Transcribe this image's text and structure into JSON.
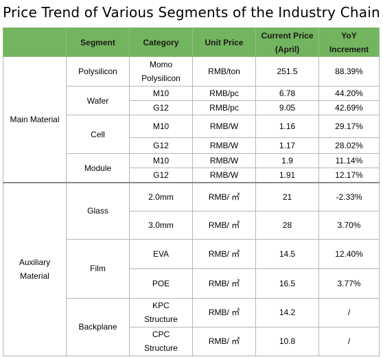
{
  "title": "Price Trend of Various Segments of the Industry Chain",
  "headers": {
    "segment": "Segment",
    "category": "Category",
    "unit_price": "Unit Price",
    "current_price_line1": "Current Price",
    "current_price_line2": "(April)",
    "yoy_line1": "YoY",
    "yoy_line2": "Increment"
  },
  "groups": {
    "main": "Main Material",
    "aux_line1": "Auxiliary",
    "aux_line2": "Material"
  },
  "segments": {
    "polysilicon": "Polysilicon",
    "wafer": "Wafer",
    "cell": "Cell",
    "module": "Module",
    "glass": "Glass",
    "film": "Film",
    "backplane": "Backplane"
  },
  "rows": [
    {
      "category_line1": "Momo",
      "category_line2": "Polysilicon",
      "unit": "RMB/ton",
      "price": "251.5",
      "yoy": "88.39%"
    },
    {
      "category_line1": "M10",
      "category_line2": "",
      "unit": "RMB/pc",
      "price": "6.78",
      "yoy": "44.20%"
    },
    {
      "category_line1": "G12",
      "category_line2": "",
      "unit": "RMB/pc",
      "price": "9.05",
      "yoy": "42.69%"
    },
    {
      "category_line1": "M10",
      "category_line2": "",
      "unit": "RMB/W",
      "price": "1.16",
      "yoy": "29.17%"
    },
    {
      "category_line1": "G12",
      "category_line2": "",
      "unit": "RMB/W",
      "price": "1.17",
      "yoy": "28.02%"
    },
    {
      "category_line1": "M10",
      "category_line2": "",
      "unit": "RMB/W",
      "price": "1.9",
      "yoy": "11.14%"
    },
    {
      "category_line1": "G12",
      "category_line2": "",
      "unit": "RMB/W",
      "price": "1.91",
      "yoy": "12.17%"
    },
    {
      "category_line1": "2.0mm",
      "category_line2": "",
      "unit": "RMB/ ㎡",
      "price": "21",
      "yoy": "-2.33%"
    },
    {
      "category_line1": "3.0mm",
      "category_line2": "",
      "unit": "RMB/ ㎡",
      "price": "28",
      "yoy": "3.70%"
    },
    {
      "category_line1": "EVA",
      "category_line2": "",
      "unit": "RMB/ ㎡",
      "price": "14.5",
      "yoy": "12.40%"
    },
    {
      "category_line1": "POE",
      "category_line2": "",
      "unit": "RMB/ ㎡",
      "price": "16.5",
      "yoy": "3.77%"
    },
    {
      "category_line1": "KPC",
      "category_line2": "Structure",
      "unit": "RMB/ ㎡",
      "price": "14.2",
      "yoy": "/"
    },
    {
      "category_line1": "CPC",
      "category_line2": "Structure",
      "unit": "RMB/ ㎡",
      "price": "10.8",
      "yoy": "/"
    }
  ],
  "colors": {
    "header_bg": "#73b45e",
    "border": "#b5b5b5"
  }
}
